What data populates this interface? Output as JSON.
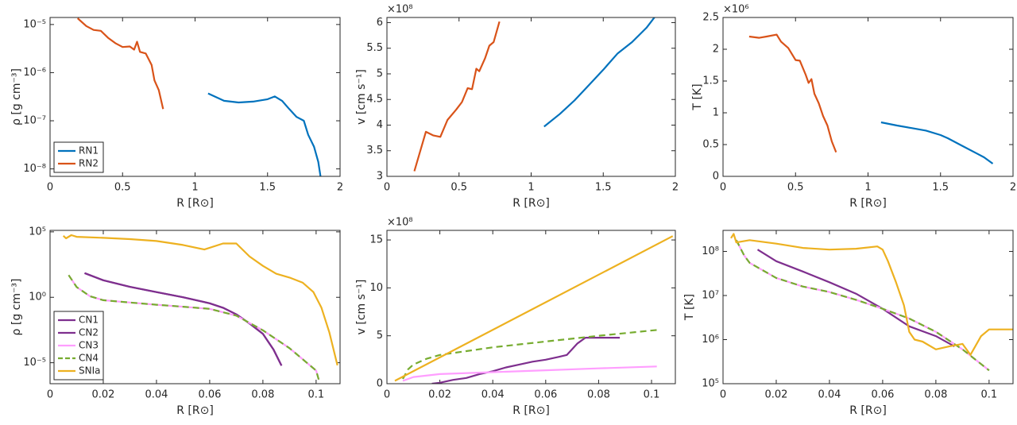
{
  "chart_data": [
    {
      "type": "line",
      "xlabel": "R [R⊙]",
      "ylabel": "ρ [g cm⁻³]",
      "xlim": [
        0,
        2
      ],
      "xticks": [
        0,
        0.5,
        1,
        1.5,
        2
      ],
      "ylog": true,
      "ylim": [
        7e-09,
        1.4e-05
      ],
      "yticks": [
        {
          "value": 1e-08,
          "label": "10⁻⁸"
        },
        {
          "value": 1e-07,
          "label": "10⁻⁷"
        },
        {
          "value": 1e-06,
          "label": "10⁻⁶"
        },
        {
          "value": 1e-05,
          "label": "10⁻⁵"
        }
      ],
      "legend": "lower left",
      "series": [
        {
          "name": "RN1",
          "color": "#0072BD",
          "x": [
            1.09,
            1.2,
            1.3,
            1.4,
            1.5,
            1.55,
            1.6,
            1.65,
            1.7,
            1.75,
            1.78,
            1.82,
            1.85,
            1.865
          ],
          "values": [
            3.7e-07,
            2.6e-07,
            2.4e-07,
            2.5e-07,
            2.8e-07,
            3.2e-07,
            2.6e-07,
            1.75e-07,
            1.2e-07,
            1e-07,
            5.1e-08,
            2.9e-08,
            1.4e-08,
            7e-09
          ]
        },
        {
          "name": "RN2",
          "color": "#D95319",
          "x": [
            0.19,
            0.25,
            0.3,
            0.35,
            0.4,
            0.45,
            0.5,
            0.55,
            0.58,
            0.6,
            0.62,
            0.66,
            0.7,
            0.72,
            0.75,
            0.78
          ],
          "values": [
            1.35e-05,
            9.3e-06,
            7.7e-06,
            7.4e-06,
            5.3e-06,
            4.1e-06,
            3.4e-06,
            3.5e-06,
            3e-06,
            4.4e-06,
            2.7e-06,
            2.5e-06,
            1.45e-06,
            6.9e-07,
            4.3e-07,
            1.75e-07
          ]
        }
      ]
    },
    {
      "type": "line",
      "xlabel": "R [R⊙]",
      "ylabel": "v [cm s⁻¹]",
      "y_multiplier": "×10⁸",
      "xlim": [
        0,
        2
      ],
      "xticks": [
        0,
        0.5,
        1,
        1.5,
        2
      ],
      "ylim": [
        3,
        6.1
      ],
      "yticks": [
        3,
        3.5,
        4,
        4.5,
        5,
        5.5,
        6
      ],
      "series": [
        {
          "color": "#0072BD",
          "x": [
            1.09,
            1.2,
            1.3,
            1.4,
            1.5,
            1.6,
            1.7,
            1.8,
            1.86
          ],
          "values": [
            3.97,
            4.22,
            4.48,
            4.78,
            5.08,
            5.4,
            5.62,
            5.9,
            6.12
          ]
        },
        {
          "color": "#D95319",
          "x": [
            0.19,
            0.27,
            0.32,
            0.37,
            0.42,
            0.48,
            0.52,
            0.56,
            0.59,
            0.62,
            0.64,
            0.68,
            0.71,
            0.74,
            0.78
          ],
          "values": [
            3.1,
            3.87,
            3.8,
            3.77,
            4.1,
            4.3,
            4.45,
            4.72,
            4.7,
            5.1,
            5.05,
            5.3,
            5.55,
            5.62,
            6.02
          ]
        }
      ]
    },
    {
      "type": "line",
      "xlabel": "R [R⊙]",
      "ylabel": "T [K]",
      "y_multiplier": "×10⁶",
      "xlim": [
        0,
        2
      ],
      "xticks": [
        0,
        0.5,
        1,
        1.5,
        2
      ],
      "ylim": [
        0,
        2.5
      ],
      "yticks": [
        0,
        0.5,
        1,
        1.5,
        2,
        2.5
      ],
      "series": [
        {
          "color": "#0072BD",
          "x": [
            1.09,
            1.2,
            1.3,
            1.4,
            1.5,
            1.55,
            1.65,
            1.75,
            1.8,
            1.86
          ],
          "values": [
            0.85,
            0.8,
            0.76,
            0.72,
            0.65,
            0.6,
            0.48,
            0.36,
            0.3,
            0.2
          ]
        },
        {
          "color": "#D95319",
          "x": [
            0.18,
            0.25,
            0.3,
            0.37,
            0.4,
            0.45,
            0.5,
            0.53,
            0.57,
            0.59,
            0.61,
            0.63,
            0.66,
            0.69,
            0.72,
            0.75,
            0.78
          ],
          "values": [
            2.2,
            2.18,
            2.2,
            2.23,
            2.12,
            2.02,
            1.83,
            1.82,
            1.6,
            1.47,
            1.53,
            1.3,
            1.15,
            0.95,
            0.8,
            0.55,
            0.38
          ]
        }
      ]
    },
    {
      "type": "line",
      "xlabel": "R [R⊙]",
      "ylabel": "ρ [g cm⁻³]",
      "xlim": [
        0,
        0.109
      ],
      "xticks": [
        0,
        0.02,
        0.04,
        0.06,
        0.08,
        0.1
      ],
      "ylog": true,
      "ylim": [
        2.5e-07,
        130000.0
      ],
      "yticks": [
        {
          "value": 1e-05,
          "label": "10⁻⁵"
        },
        {
          "value": 1,
          "label": "10⁰"
        },
        {
          "value": 100000.0,
          "label": "10⁵"
        }
      ],
      "legend": "lower left",
      "series": [
        {
          "name": "CN1",
          "color": "#7E2F8E",
          "x": [
            0.013,
            0.02,
            0.03,
            0.04,
            0.05,
            0.06,
            0.065,
            0.07,
            0.075,
            0.08,
            0.084,
            0.087
          ],
          "values": [
            70,
            20,
            6.3,
            2.5,
            1.0,
            0.35,
            0.16,
            0.05,
            0.01,
            0.0016,
            0.0001,
            6e-06
          ]
        },
        {
          "name": "CN2",
          "color": "#7E2F8E",
          "x": [
            0.013,
            0.02,
            0.03,
            0.04,
            0.05,
            0.06,
            0.065,
            0.07,
            0.075,
            0.08,
            0.084,
            0.087
          ],
          "values": [
            70,
            20,
            6.3,
            2.5,
            1.0,
            0.35,
            0.16,
            0.05,
            0.01,
            0.0016,
            0.0001,
            6e-06
          ]
        },
        {
          "name": "CN3",
          "color": "#FF9EFF",
          "x": [
            0.007,
            0.01,
            0.015,
            0.02,
            0.03,
            0.04,
            0.05,
            0.06,
            0.07,
            0.08,
            0.09,
            0.1,
            0.101
          ],
          "values": [
            50,
            6,
            1.2,
            0.6,
            0.4,
            0.27,
            0.19,
            0.13,
            0.04,
            0.003,
            0.00013,
            2.5e-06,
            5e-07
          ]
        },
        {
          "name": "CN4",
          "color": "#77AC30",
          "dashed": true,
          "x": [
            0.007,
            0.01,
            0.015,
            0.02,
            0.03,
            0.04,
            0.05,
            0.06,
            0.07,
            0.08,
            0.09,
            0.1,
            0.101
          ],
          "values": [
            50,
            6,
            1.2,
            0.6,
            0.4,
            0.27,
            0.19,
            0.13,
            0.04,
            0.003,
            0.00013,
            2.5e-06,
            5e-07
          ]
        },
        {
          "name": "SNIa",
          "color": "#EDB120",
          "x": [
            0.005,
            0.006,
            0.008,
            0.01,
            0.02,
            0.03,
            0.04,
            0.05,
            0.058,
            0.065,
            0.07,
            0.075,
            0.08,
            0.085,
            0.09,
            0.095,
            0.099,
            0.102,
            0.105,
            0.108
          ],
          "values": [
            50000.0,
            32000.0,
            56000.0,
            42000.0,
            35000.0,
            28000.0,
            20000.0,
            10000.0,
            4500.0,
            13000.0,
            13000.0,
            1300.0,
            250,
            63,
            32,
            13,
            2.5,
            0.16,
            0.002,
            6.3e-06
          ]
        }
      ]
    },
    {
      "type": "line",
      "xlabel": "R [R⊙]",
      "ylabel": "v [cm s⁻¹]",
      "y_multiplier": "×10⁸",
      "xlim": [
        0,
        0.109
      ],
      "xticks": [
        0,
        0.02,
        0.04,
        0.06,
        0.08,
        0.1
      ],
      "ylim": [
        0,
        16
      ],
      "yticks": [
        0,
        5,
        10,
        15
      ],
      "series": [
        {
          "color": "#7E2F8E",
          "x": [
            0.017,
            0.02,
            0.025,
            0.03,
            0.035,
            0.04,
            0.045,
            0.05,
            0.055,
            0.06,
            0.065,
            0.068,
            0.072,
            0.075,
            0.088
          ],
          "values": [
            0,
            0.1,
            0.4,
            0.6,
            1.0,
            1.3,
            1.7,
            2.0,
            2.3,
            2.5,
            2.8,
            3.0,
            4.2,
            4.8,
            4.8
          ]
        },
        {
          "color": "#FF9EFF",
          "x": [
            0.006,
            0.01,
            0.02,
            0.04,
            0.06,
            0.08,
            0.102
          ],
          "values": [
            0.3,
            0.7,
            1.0,
            1.2,
            1.4,
            1.6,
            1.8
          ]
        },
        {
          "color": "#77AC30",
          "dashed": true,
          "x": [
            0.006,
            0.008,
            0.01,
            0.015,
            0.02,
            0.03,
            0.04,
            0.06,
            0.08,
            0.102
          ],
          "values": [
            0.5,
            1.5,
            2.0,
            2.6,
            3.0,
            3.4,
            3.8,
            4.4,
            5.0,
            5.6
          ]
        },
        {
          "color": "#EDB120",
          "x": [
            0.003,
            0.108
          ],
          "values": [
            0.3,
            15.4
          ]
        }
      ]
    },
    {
      "type": "line",
      "xlabel": "R [R⊙]",
      "ylabel": "T [K]",
      "xlim": [
        0,
        0.109
      ],
      "xticks": [
        0,
        0.02,
        0.04,
        0.06,
        0.08,
        0.1
      ],
      "ylog": true,
      "ylim": [
        100000.0,
        300000000.0
      ],
      "yticks": [
        {
          "value": 100000.0,
          "label": "10⁵"
        },
        {
          "value": 1000000.0,
          "label": "10⁶"
        },
        {
          "value": 10000000.0,
          "label": "10⁷"
        },
        {
          "value": 100000000.0,
          "label": "10⁸"
        }
      ],
      "series": [
        {
          "color": "#7E2F8E",
          "x": [
            0.013,
            0.02,
            0.03,
            0.04,
            0.05,
            0.06,
            0.07,
            0.08,
            0.087
          ],
          "values": [
            110000000.0,
            60000000.0,
            35000000.0,
            20000000.0,
            11000000.0,
            5000000.0,
            2000000.0,
            1200000.0,
            700000.0
          ]
        },
        {
          "color": "#FF9EFF",
          "x": [
            0.005,
            0.008,
            0.01,
            0.02,
            0.03,
            0.04,
            0.05,
            0.06,
            0.07,
            0.08,
            0.09,
            0.1
          ],
          "values": [
            180000000.0,
            80000000.0,
            55000000.0,
            25000000.0,
            16000000.0,
            12000000.0,
            8000000.0,
            5000000.0,
            3000000.0,
            1500000.0,
            600000.0,
            200000.0
          ]
        },
        {
          "color": "#77AC30",
          "dashed": true,
          "x": [
            0.005,
            0.008,
            0.01,
            0.02,
            0.03,
            0.04,
            0.05,
            0.06,
            0.07,
            0.08,
            0.09,
            0.1
          ],
          "values": [
            180000000.0,
            80000000.0,
            55000000.0,
            25000000.0,
            16000000.0,
            12000000.0,
            8000000.0,
            5000000.0,
            3000000.0,
            1500000.0,
            600000.0,
            200000.0
          ]
        },
        {
          "color": "#EDB120",
          "x": [
            0.003,
            0.004,
            0.005,
            0.01,
            0.02,
            0.03,
            0.04,
            0.05,
            0.058,
            0.06,
            0.062,
            0.065,
            0.068,
            0.07,
            0.072,
            0.075,
            0.08,
            0.085,
            0.09,
            0.093,
            0.097,
            0.1,
            0.109
          ],
          "values": [
            200000000.0,
            250000000.0,
            160000000.0,
            180000000.0,
            150000000.0,
            120000000.0,
            110000000.0,
            115000000.0,
            130000000.0,
            110000000.0,
            60000000.0,
            20000000.0,
            6000000.0,
            1500000.0,
            1000000.0,
            900000.0,
            600000.0,
            700000.0,
            800000.0,
            450000.0,
            1200000.0,
            1700000.0,
            1700000.0
          ]
        }
      ]
    }
  ]
}
